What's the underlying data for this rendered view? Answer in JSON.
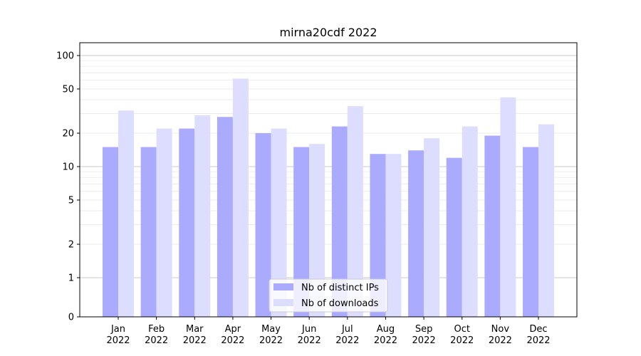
{
  "chart_data": {
    "type": "bar",
    "title": "mirna20cdf 2022",
    "xlabel": "",
    "ylabel": "",
    "yscale": "symlog",
    "ylim": [
      0,
      120
    ],
    "grid": "horizontal",
    "legend_position": "bottom-center",
    "categories": [
      [
        "Jan",
        "2022"
      ],
      [
        "Feb",
        "2022"
      ],
      [
        "Mar",
        "2022"
      ],
      [
        "Apr",
        "2022"
      ],
      [
        "May",
        "2022"
      ],
      [
        "Jun",
        "2022"
      ],
      [
        "Jul",
        "2022"
      ],
      [
        "Aug",
        "2022"
      ],
      [
        "Sep",
        "2022"
      ],
      [
        "Oct",
        "2022"
      ],
      [
        "Nov",
        "2022"
      ],
      [
        "Dec",
        "2022"
      ]
    ],
    "yticks": [
      {
        "value": 0,
        "label": "0"
      },
      {
        "value": 1,
        "label": "1"
      },
      {
        "value": 2,
        "label": "2"
      },
      {
        "value": 5,
        "label": "5"
      },
      {
        "value": 10,
        "label": "10"
      },
      {
        "value": 20,
        "label": "20"
      },
      {
        "value": 50,
        "label": "50"
      },
      {
        "value": 100,
        "label": "100"
      }
    ],
    "series": [
      {
        "name": "Nb of distinct IPs",
        "color": "#aaaaff",
        "values": [
          15,
          15,
          22,
          28,
          20,
          15,
          23,
          13,
          14,
          12,
          19,
          15
        ]
      },
      {
        "name": "Nb of downloads",
        "color": "#ddddff",
        "values": [
          32,
          22,
          29,
          62,
          22,
          16,
          35,
          13,
          18,
          23,
          42,
          24
        ]
      }
    ]
  }
}
